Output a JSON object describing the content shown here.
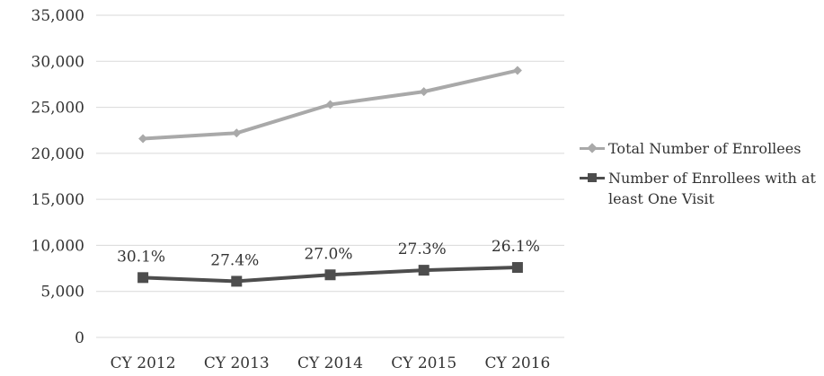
{
  "chart_data": {
    "type": "line",
    "categories": [
      "CY 2012",
      "CY 2013",
      "CY 2014",
      "CY 2015",
      "CY 2016"
    ],
    "y_ticks": [
      "0",
      "5,000",
      "10,000",
      "15,000",
      "20,000",
      "25,000",
      "30,000",
      "35,000"
    ],
    "ylim": [
      0,
      35000
    ],
    "grid": true,
    "legend_position": "right",
    "series": [
      {
        "name": "Total Number of Enrollees",
        "values": [
          21600,
          22200,
          25300,
          26700,
          29000
        ],
        "color": "#a9a9a9",
        "marker": "diamond"
      },
      {
        "name": "Number of Enrollees with at least One Visit",
        "values": [
          6500,
          6100,
          6800,
          7300,
          7600
        ],
        "color": "#4d4d4d",
        "marker": "square",
        "data_labels": [
          "30.1%",
          "27.4%",
          "27.0%",
          "27.3%",
          "26.1%"
        ]
      }
    ]
  }
}
